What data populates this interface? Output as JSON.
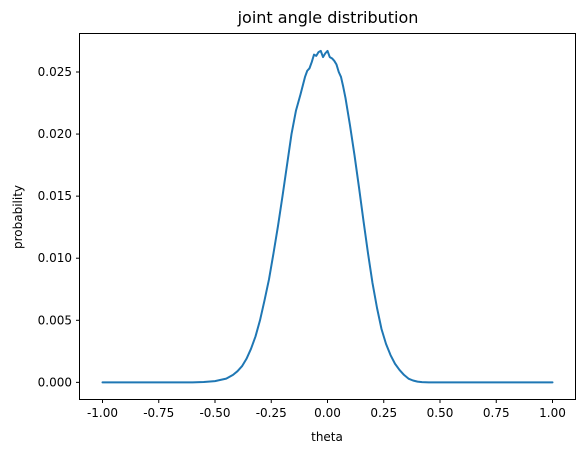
{
  "chart_data": {
    "type": "line",
    "title": "joint angle distribution",
    "xlabel": "theta",
    "ylabel": "probability",
    "xlim": [
      -1.1,
      1.1
    ],
    "ylim": [
      -0.00134,
      0.02806
    ],
    "grid": false,
    "legend": "none",
    "x_ticks": [
      -1.0,
      -0.75,
      -0.5,
      -0.25,
      0.0,
      0.25,
      0.5,
      0.75,
      1.0
    ],
    "x_tick_labels": [
      "-1.00",
      "-0.75",
      "-0.50",
      "-0.25",
      "0.00",
      "0.25",
      "0.50",
      "0.75",
      "1.00"
    ],
    "y_ticks": [
      0.0,
      0.005,
      0.01,
      0.015,
      0.02,
      0.025
    ],
    "y_tick_labels": [
      "0.000",
      "0.005",
      "0.010",
      "0.015",
      "0.020",
      "0.025"
    ],
    "series": [
      {
        "color": "#1f77b4",
        "x": [
          -1.0,
          -0.9,
          -0.8,
          -0.7,
          -0.6,
          -0.55,
          -0.5,
          -0.45,
          -0.42,
          -0.4,
          -0.38,
          -0.36,
          -0.34,
          -0.32,
          -0.3,
          -0.28,
          -0.26,
          -0.24,
          -0.22,
          -0.2,
          -0.18,
          -0.16,
          -0.14,
          -0.12,
          -0.1,
          -0.09,
          -0.08,
          -0.07,
          -0.06,
          -0.05,
          -0.04,
          -0.03,
          -0.02,
          -0.01,
          0.0,
          0.01,
          0.02,
          0.03,
          0.04,
          0.05,
          0.06,
          0.07,
          0.08,
          0.1,
          0.12,
          0.14,
          0.16,
          0.18,
          0.2,
          0.22,
          0.24,
          0.26,
          0.28,
          0.3,
          0.32,
          0.34,
          0.36,
          0.38,
          0.4,
          0.42,
          0.45,
          0.5,
          0.55,
          0.6,
          0.7,
          0.8,
          0.9,
          1.0
        ],
        "y": [
          0.0,
          0.0,
          0.0,
          0.0,
          0.0,
          3e-05,
          0.0001,
          0.0003,
          0.0006,
          0.0009,
          0.0013,
          0.0019,
          0.0027,
          0.0037,
          0.005,
          0.0066,
          0.0083,
          0.0104,
          0.0126,
          0.015,
          0.0175,
          0.02,
          0.0219,
          0.0232,
          0.0246,
          0.0251,
          0.0253,
          0.0258,
          0.0264,
          0.0263,
          0.0266,
          0.0267,
          0.0262,
          0.0265,
          0.0267,
          0.0262,
          0.0261,
          0.0259,
          0.0256,
          0.025,
          0.0246,
          0.0238,
          0.0229,
          0.0207,
          0.0183,
          0.0157,
          0.013,
          0.0104,
          0.008,
          0.006,
          0.0043,
          0.0031,
          0.0022,
          0.0015,
          0.001,
          0.0006,
          0.0003,
          0.00015,
          6e-05,
          2e-05,
          0.0,
          0.0,
          0.0,
          0.0,
          0.0,
          0.0,
          0.0,
          0.0
        ]
      }
    ]
  }
}
